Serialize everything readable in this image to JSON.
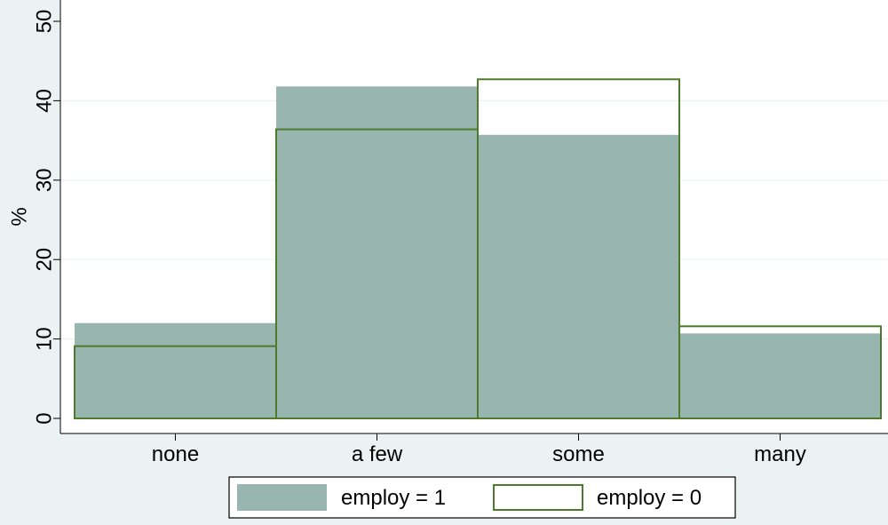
{
  "chart_data": {
    "type": "bar",
    "categories": [
      "none",
      "a few",
      "some",
      "many"
    ],
    "series": [
      {
        "name": "employ = 1",
        "values": [
          12.0,
          41.8,
          35.7,
          10.7
        ],
        "style": "filled",
        "color": "#98b5b0"
      },
      {
        "name": "employ = 0",
        "values": [
          9.1,
          36.4,
          42.7,
          11.6
        ],
        "style": "outline",
        "color": "#4e7a2b"
      }
    ],
    "xlabel": "",
    "ylabel": "%",
    "ylim": [
      0,
      50
    ],
    "yticks": [
      0,
      10,
      20,
      30,
      40,
      50
    ],
    "grid": true,
    "legend_position": "bottom",
    "colors": {
      "background": "#eaf2f3",
      "plot_background": "#ffffff",
      "gridline": "#eaf2f3",
      "axis": "#000000"
    }
  }
}
